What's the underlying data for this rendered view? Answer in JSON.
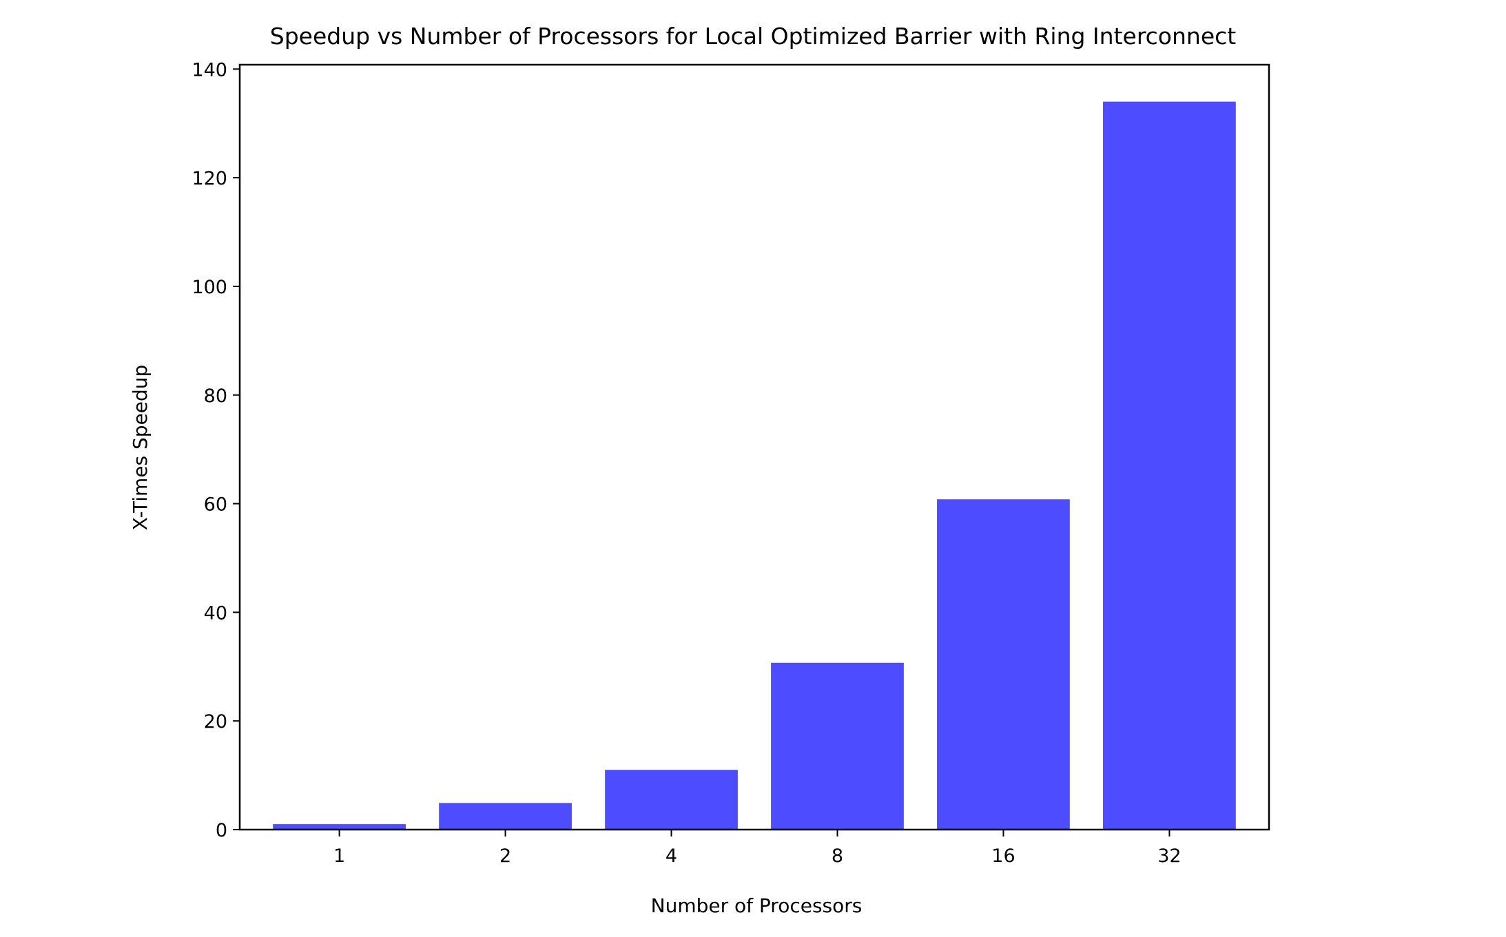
{
  "chart_data": {
    "type": "bar",
    "title": "Speedup vs Number of Processors for Local Optimized Barrier with Ring Interconnect",
    "xlabel": "Number of Processors",
    "ylabel": "X-Times Speedup",
    "categories": [
      "1",
      "2",
      "4",
      "8",
      "16",
      "32"
    ],
    "values": [
      1.0,
      4.9,
      11.0,
      30.7,
      60.8,
      134.0
    ],
    "ylim": [
      0,
      140.8
    ],
    "yticks": [
      0,
      20,
      40,
      60,
      80,
      100,
      120,
      140
    ],
    "grid": false,
    "legend": "none",
    "bar_color": "#4d4dff"
  }
}
